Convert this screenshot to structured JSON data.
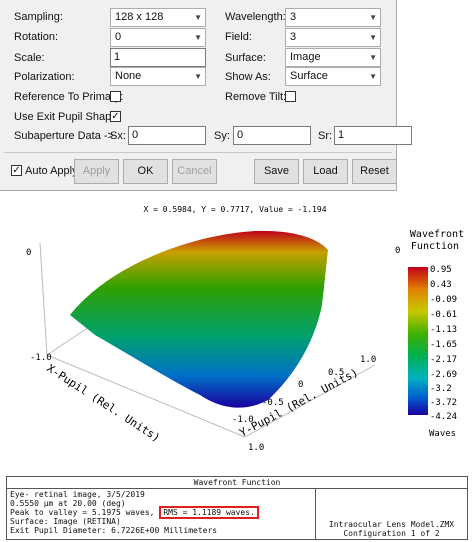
{
  "settings": {
    "sampling_label": "Sampling:",
    "sampling_value": "128 x 128",
    "wavelength_label": "Wavelength:",
    "wavelength_value": "3",
    "rotation_label": "Rotation:",
    "rotation_value": "0",
    "field_label": "Field:",
    "field_value": "3",
    "scale_label": "Scale:",
    "scale_value": "1",
    "surface_label": "Surface:",
    "surface_value": "Image",
    "polarization_label": "Polarization:",
    "polarization_value": "None",
    "showas_label": "Show As:",
    "showas_value": "Surface",
    "ref_primary_label": "Reference To Primary:",
    "ref_primary_checked": false,
    "remove_tilt_label": "Remove Tilt:",
    "remove_tilt_checked": false,
    "exit_pupil_label": "Use Exit Pupil Shape:",
    "exit_pupil_checked": true,
    "subaperture_label": "Subaperture Data ->",
    "sx_label": "Sx:",
    "sx_value": "0",
    "sy_label": "Sy:",
    "sy_value": "0",
    "sr_label": "Sr:",
    "sr_value": "1"
  },
  "buttons": {
    "auto_apply_label": "Auto Apply",
    "auto_apply_checked": true,
    "apply": "Apply",
    "ok": "OK",
    "cancel": "Cancel",
    "save": "Save",
    "load": "Load",
    "reset": "Reset"
  },
  "plot": {
    "readout": "X = 0.5984, Y = 0.7717, Value = -1.194",
    "legend_title_1": "Wavefront",
    "legend_title_2": "Function",
    "legend_values": [
      "0.95",
      "0.43",
      "-0.09",
      "-0.61",
      "-1.13",
      "-1.65",
      "-2.17",
      "-2.69",
      "-3.2",
      "-3.72",
      "-4.24"
    ],
    "legend_units": "Waves",
    "x_axis_label": "X-Pupil (Rel. Units)",
    "y_axis_label": "Y-Pupil (Rel. Units)",
    "z_tick_top": "0",
    "x_tick_neg": "-1.0",
    "x_tick_pos": "1.0",
    "y_ticks": [
      "-1.0",
      "-0.5",
      "0",
      "0.5",
      "1.0"
    ],
    "z_tick_mid": "0",
    "colors": {
      "top": "#c0001a",
      "mid": "#2fa000",
      "low": "#00a0c8",
      "bottom": "#1a00a0"
    }
  },
  "info": {
    "header": "Wavefront Function",
    "line1": "Eye- retinal image, 3/5/2019",
    "line2": "0.5550 µm at 20.00 (deg)",
    "line3_prefix": "Peak to valley = 5.1975 waves,",
    "rms": "RMS = 1.1189 waves.",
    "line4": "Surface: Image (RETINA)",
    "line5": "Exit Pupil Diameter: 6.7226E+00 Millimeters",
    "right1": "Intraocular Lens Model.ZMX",
    "right2": "Configuration 1 of 2"
  }
}
